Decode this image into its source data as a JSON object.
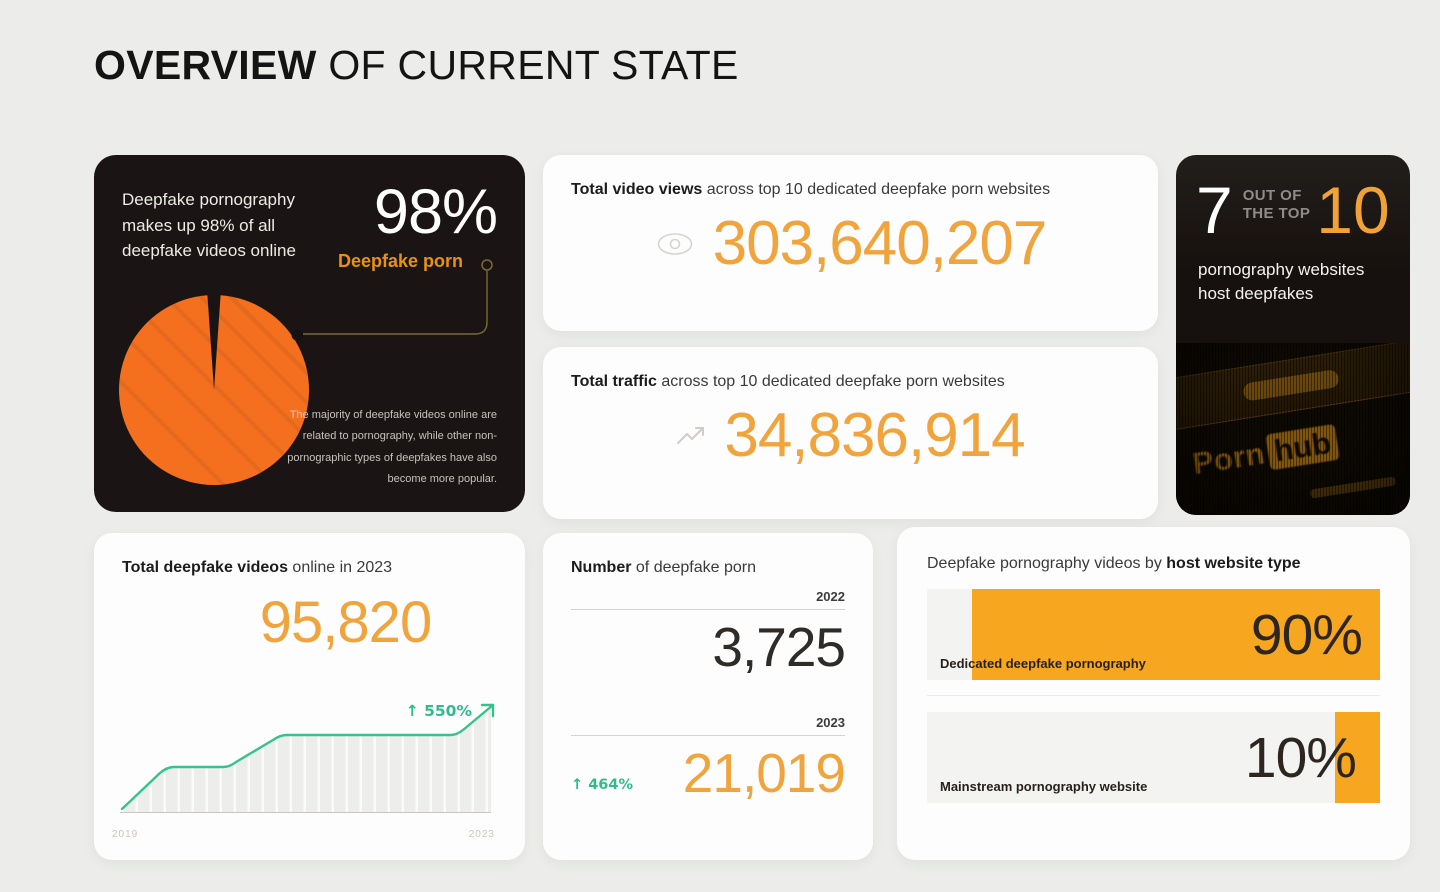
{
  "title": {
    "bold": "OVERVIEW",
    "rest": " OF CURRENT STATE"
  },
  "colors": {
    "background": "#ECEDEA",
    "dark_card": "#1A1514",
    "accent_orange_number": "#F1A33C",
    "pie_orange": "#F4701F",
    "label_orange": "#E8930E",
    "bar_orange": "#F6A71F",
    "growth_green": "#2DBD8A"
  },
  "pie_card": {
    "statement": "Deepfake pornography makes up 98% of all deepfake videos online",
    "value": "98%",
    "value_label": "Deepfake porn",
    "note": "The majority of deepfake videos online are related to pornography, while other non-pornographic types of deepfakes have also become more popular."
  },
  "views_card": {
    "heading_bold": "Total video views",
    "heading_rest": " across top 10 dedicated deepfake porn websites",
    "value": "303,640,207",
    "icon": "eye-icon"
  },
  "traffic_card": {
    "heading_bold": "Total traffic",
    "heading_rest": " across top 10 dedicated deepfake porn websites",
    "value": "34,836,914",
    "icon": "trend-up-icon"
  },
  "top10_card": {
    "numerator": "7",
    "connector_line1": "OUT OF",
    "connector_line2": "THE TOP",
    "denominator": "10",
    "caption": "pornography websites host deepfakes",
    "photo_text": {
      "porn": "Porn",
      "hub": "hub"
    }
  },
  "growth_card": {
    "heading_bold": "Total deepfake videos",
    "heading_rest": " online in 2023",
    "value": "95,820",
    "growth_label": "↑ 550%",
    "axis_start": "2019",
    "axis_end": "2023"
  },
  "number_card": {
    "heading_bold": "Number",
    "heading_rest": " of deepfake porn",
    "row_2022": {
      "year": "2022",
      "value": "3,725"
    },
    "row_2023": {
      "year": "2023",
      "value": "21,019",
      "growth_label": "↑ 464%"
    }
  },
  "host_card": {
    "heading_rest": "Deepfake pornography videos by ",
    "heading_bold": "host website type",
    "bars": [
      {
        "label": "Dedicated deepfake pornography",
        "value": "90%",
        "pct": 90
      },
      {
        "label": "Mainstream pornography website",
        "value": "10%",
        "pct": 10
      }
    ]
  },
  "chart_data": [
    {
      "type": "pie",
      "title": "Deepfake pornography makes up 98% of all deepfake videos online",
      "labels": [
        "Deepfake porn",
        "Other deepfake videos"
      ],
      "values": [
        98,
        2
      ],
      "colors": [
        "#F4701F",
        "#1A1514"
      ],
      "legend_position": "callout-right"
    },
    {
      "type": "stat",
      "title": "Total video views across top 10 dedicated deepfake porn websites",
      "value": 303640207
    },
    {
      "type": "stat",
      "title": "Total traffic across top 10 dedicated deepfake porn websites",
      "value": 34836914
    },
    {
      "type": "stat",
      "title": "pornography websites host deepfakes",
      "value": "7 out of the top 10"
    },
    {
      "type": "line",
      "title": "Total deepfake videos online in 2023",
      "total": 95820,
      "growth_pct": 550,
      "x": [
        "2019",
        "2019.6",
        "2020.2",
        "2020.8",
        "2022.8",
        "2023"
      ],
      "values_relative": [
        0,
        42,
        42,
        72,
        72,
        100
      ],
      "xlabel_ticks": [
        "2019",
        "2023"
      ],
      "grid": "vertical-stripes",
      "line_color": "#36C28D",
      "annotation": "↑ 550%"
    },
    {
      "type": "bar",
      "title": "Number of deepfake porn",
      "categories": [
        "2022",
        "2023"
      ],
      "values": [
        3725,
        21019
      ],
      "annotation": "↑ 464%"
    },
    {
      "type": "bar",
      "title": "Deepfake pornography videos by host website type",
      "categories": [
        "Dedicated deepfake pornography",
        "Mainstream pornography website"
      ],
      "values": [
        90,
        10
      ],
      "unit": "%",
      "bar_color": "#F6A71F"
    }
  ]
}
